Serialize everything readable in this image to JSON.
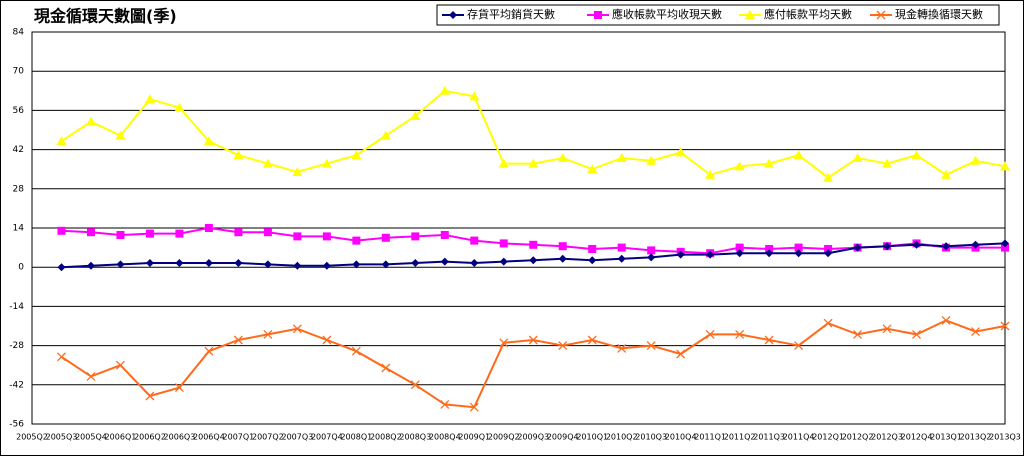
{
  "chart_data": {
    "type": "line",
    "title": "現金循環天數圖(季)",
    "categories": [
      "2005Q2",
      "2005Q3",
      "2005Q4",
      "2006Q1",
      "2006Q2",
      "2006Q3",
      "2006Q4",
      "2007Q1",
      "2007Q2",
      "2007Q3",
      "2007Q4",
      "2008Q1",
      "2008Q2",
      "2008Q3",
      "2008Q4",
      "2009Q1",
      "2009Q2",
      "2009Q3",
      "2009Q4",
      "2010Q1",
      "2010Q2",
      "2010Q3",
      "2010Q4",
      "2011Q1",
      "2011Q2",
      "2011Q3",
      "2011Q4",
      "2012Q1",
      "2012Q2",
      "2012Q3",
      "2012Q4",
      "2013Q1",
      "2013Q2",
      "2013Q3"
    ],
    "ylim": [
      -56,
      84
    ],
    "yticks": [
      -56,
      -42,
      -28,
      -14,
      0,
      14,
      28,
      42,
      56,
      70,
      84
    ],
    "grid": true,
    "legend": "top-right",
    "series": [
      {
        "name": "存貨平均銷貨天數",
        "color": "#000080",
        "marker": "diamond",
        "values": [
          null,
          0,
          0.5,
          1,
          1.5,
          1.5,
          1.5,
          1.5,
          1,
          0.5,
          0.5,
          1,
          1,
          1.5,
          2,
          1.5,
          2,
          2.5,
          3,
          2.5,
          3,
          3.5,
          4.5,
          4.5,
          5,
          5,
          5,
          5,
          7,
          7.5,
          8,
          7.5,
          8,
          8.5
        ]
      },
      {
        "name": "應收帳款平均收現天數",
        "color": "#ff00ff",
        "marker": "square",
        "values": [
          null,
          13,
          12.5,
          11.5,
          12,
          12,
          14,
          12.5,
          12.5,
          11,
          11,
          9.5,
          10.5,
          11,
          11.5,
          9.5,
          8.5,
          8,
          7.5,
          6.5,
          7,
          6,
          5.5,
          5,
          7,
          6.5,
          7,
          6.5,
          7,
          7.5,
          8.5,
          7,
          7,
          7
        ]
      },
      {
        "name": "應付帳款平均天數",
        "color": "#ffff00",
        "marker": "triangle",
        "values": [
          null,
          45,
          52,
          47,
          60,
          57,
          45,
          40,
          37,
          34,
          37,
          40,
          47,
          54,
          63,
          61,
          37,
          37,
          39,
          35,
          39,
          38,
          41,
          33,
          36,
          37,
          40,
          32,
          39,
          37,
          40,
          33,
          38,
          36
        ]
      },
      {
        "name": "現金轉換循環天數",
        "color": "#ff6a1a",
        "marker": "x",
        "values": [
          null,
          -32,
          -39,
          -35,
          -46,
          -43,
          -30,
          -26,
          -24,
          -22,
          -26,
          -30,
          -36,
          -42,
          -49,
          -50,
          -27,
          -26,
          -28,
          -26,
          -29,
          -28,
          -31,
          -24,
          -24,
          -26,
          -28,
          -20,
          -24,
          -22,
          -24,
          -19,
          -23,
          -21
        ]
      }
    ]
  }
}
